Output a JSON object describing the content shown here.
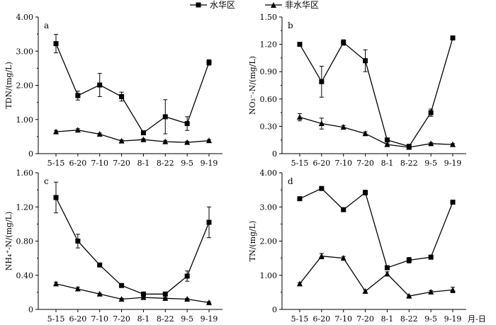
{
  "legend": [
    {
      "name": "水华区",
      "marker": "square"
    },
    {
      "name": "非水华区",
      "marker": "triangle"
    }
  ],
  "colors": {
    "line": "#000000",
    "background": "#ffffff"
  },
  "chart_data": [
    {
      "panel": "a",
      "type": "line",
      "x": [
        "5-15",
        "6-20",
        "7-10",
        "7-20",
        "8-1",
        "8-22",
        "9-5",
        "9-19"
      ],
      "ylabel": "TDN/(mg/L)",
      "xlabel": "",
      "ylim": [
        0,
        4.0
      ],
      "yticks": [
        "0",
        "1.00",
        "2.00",
        "3.00",
        "4.00"
      ],
      "grid": false,
      "series": [
        {
          "name": "水华区",
          "marker": "square",
          "values": [
            3.22,
            1.7,
            2.01,
            1.67,
            0.61,
            1.08,
            0.88,
            2.67
          ],
          "errors": [
            0.27,
            0.13,
            0.34,
            0.13,
            0.04,
            0.5,
            0.2,
            0.08
          ]
        },
        {
          "name": "非水华区",
          "marker": "triangle",
          "values": [
            0.64,
            0.69,
            0.57,
            0.37,
            0.41,
            0.35,
            0.33,
            0.38
          ],
          "errors": [
            0.04,
            0.04,
            0.03,
            0.03,
            0.03,
            0.04,
            0.03,
            0.03
          ]
        }
      ]
    },
    {
      "panel": "b",
      "type": "line",
      "x": [
        "5-15",
        "6-20",
        "7-10",
        "7-20",
        "8-1",
        "8-22",
        "9-5",
        "9-19"
      ],
      "ylabel": "NO₃⁻-N/(mg/L)",
      "xlabel": "",
      "ylim": [
        0,
        1.5
      ],
      "yticks": [
        "0",
        "0.30",
        "0.60",
        "0.90",
        "1.20",
        "1.50"
      ],
      "grid": false,
      "series": [
        {
          "name": "水华区",
          "marker": "square",
          "values": [
            1.2,
            0.79,
            1.22,
            1.02,
            0.15,
            0.08,
            0.45,
            1.27
          ],
          "errors": [
            0.01,
            0.17,
            0.03,
            0.12,
            0.01,
            0.02,
            0.04,
            0.01
          ]
        },
        {
          "name": "非水华区",
          "marker": "triangle",
          "values": [
            0.4,
            0.33,
            0.29,
            0.22,
            0.1,
            0.07,
            0.11,
            0.1
          ],
          "errors": [
            0.04,
            0.06,
            0.02,
            0.02,
            0.01,
            0.02,
            0.01,
            0.01
          ]
        }
      ]
    },
    {
      "panel": "c",
      "type": "line",
      "x": [
        "5-15",
        "6-20",
        "7-10",
        "7-20",
        "8-1",
        "8-22",
        "9-5",
        "9-19"
      ],
      "ylabel": "NH₄⁺-N/(mg/L)",
      "xlabel": "",
      "ylim": [
        0,
        1.6
      ],
      "yticks": [
        "0",
        "0.40",
        "0.80",
        "1.20",
        "1.60"
      ],
      "grid": false,
      "series": [
        {
          "name": "水华区",
          "marker": "square",
          "values": [
            1.31,
            0.8,
            0.52,
            0.28,
            0.18,
            0.18,
            0.39,
            1.02
          ],
          "errors": [
            0.18,
            0.08,
            0.01,
            0.01,
            0.02,
            0.02,
            0.06,
            0.18
          ]
        },
        {
          "name": "非水华区",
          "marker": "triangle",
          "values": [
            0.3,
            0.24,
            0.18,
            0.12,
            0.14,
            0.13,
            0.12,
            0.08
          ],
          "errors": [
            0.02,
            0.02,
            0.01,
            0.01,
            0.01,
            0.01,
            0.01,
            0.01
          ]
        }
      ]
    },
    {
      "panel": "d",
      "type": "line",
      "x": [
        "5-15",
        "6-20",
        "7-10",
        "7-20",
        "8-1",
        "8-22",
        "9-5",
        "9-19"
      ],
      "ylabel": "TN/(mg/L)",
      "xlabel": "月-日",
      "ylim": [
        0,
        4.0
      ],
      "yticks": [
        "0",
        "1.00",
        "2.00",
        "3.00",
        "4.00"
      ],
      "grid": false,
      "series": [
        {
          "name": "水华区",
          "marker": "square",
          "values": [
            3.24,
            3.54,
            2.92,
            3.42,
            1.22,
            1.44,
            1.53,
            3.14
          ],
          "errors": [
            0.02,
            0.03,
            0.03,
            0.07,
            0.03,
            0.08,
            0.06,
            0.02
          ]
        },
        {
          "name": "非水华区",
          "marker": "triangle",
          "values": [
            0.75,
            1.56,
            1.5,
            0.53,
            1.04,
            0.39,
            0.51,
            0.57
          ],
          "errors": [
            0.03,
            0.08,
            0.05,
            0.04,
            0.06,
            0.02,
            0.04,
            0.08
          ]
        }
      ]
    }
  ]
}
